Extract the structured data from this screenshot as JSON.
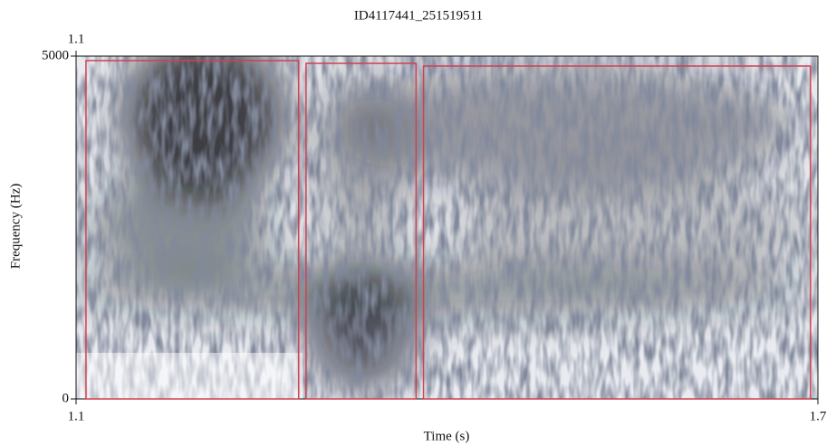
{
  "chart_data": {
    "type": "spectrogram",
    "title": "ID4117441_251519511",
    "x_label": "Time (s)",
    "y_label": "Frequency (Hz)",
    "xlim": [
      1.1,
      1.7
    ],
    "xticks": [
      1.1,
      1.7
    ],
    "top_xticks": [
      1.1
    ],
    "ylim": [
      0,
      5000
    ],
    "yticks": [
      0,
      5000
    ],
    "segment_color": "#d2404f",
    "segments": [
      {
        "start": 1.108,
        "end": 1.28,
        "top": 4934
      },
      {
        "start": 1.286,
        "end": 1.375,
        "top": 4894
      },
      {
        "start": 1.381,
        "end": 1.694,
        "top": 4855
      }
    ]
  }
}
